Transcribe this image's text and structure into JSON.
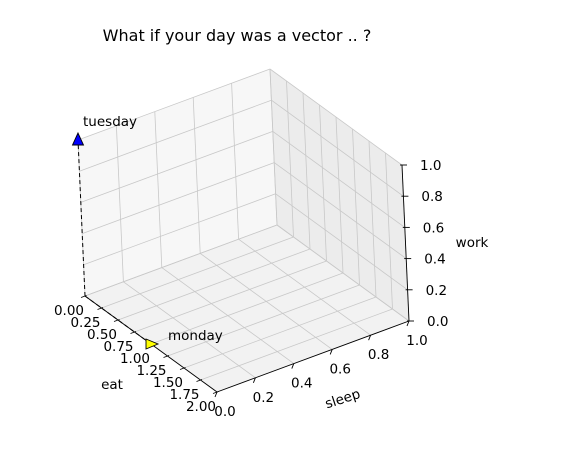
{
  "chart_data": {
    "type": "scatter",
    "title": "What if your day was a vector .. ?",
    "xlabel": "eat",
    "ylabel": "sleep",
    "zlabel": "work",
    "xlim": [
      0,
      2
    ],
    "ylim": [
      0,
      1
    ],
    "zlim": [
      0,
      1
    ],
    "xticks": [
      "0.00",
      "0.25",
      "0.50",
      "0.75",
      "1.00",
      "1.25",
      "1.50",
      "1.75",
      "2.00"
    ],
    "yticks": [
      "0.0",
      "0.2",
      "0.4",
      "0.6",
      "0.8",
      "1.0"
    ],
    "zticks": [
      "0.0",
      "0.2",
      "0.4",
      "0.6",
      "0.8",
      "1.0"
    ],
    "grid": true,
    "points": [
      {
        "label": "monday",
        "x": 1.0,
        "y": 0.0,
        "z": 0.0,
        "color": "#ffff00",
        "marker": "triangle-right"
      },
      {
        "label": "tuesday",
        "x": 0.0,
        "y": 0.0,
        "z": 1.0,
        "color": "#0000ff",
        "marker": "triangle-up"
      }
    ],
    "vectors_from_origin": true
  },
  "colors": {
    "pane_floor": "#f2f2f2",
    "pane_back": "#f7f7f7",
    "pane_side": "#ececec",
    "grid": "#c8c8c8",
    "edge": "#000000"
  }
}
